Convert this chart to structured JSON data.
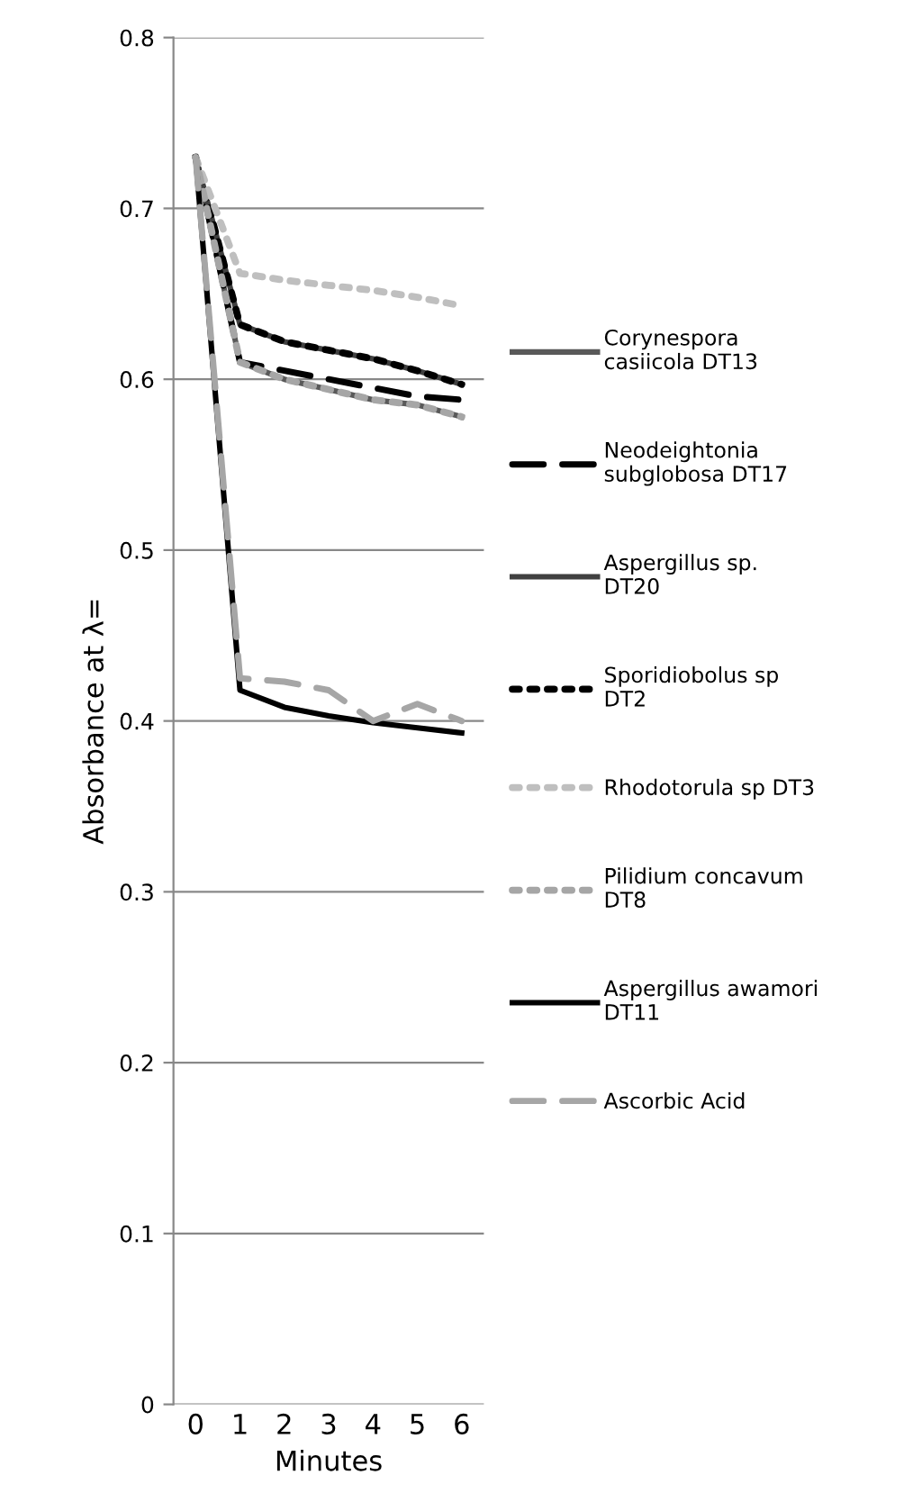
{
  "chart_data": {
    "type": "line",
    "xlabel": "Minutes",
    "ylabel": "Absorbance at λ=",
    "x": [
      0,
      1,
      2,
      3,
      4,
      5,
      6
    ],
    "xlim": [
      -0.5,
      6.5
    ],
    "xticks": [
      0,
      1,
      2,
      3,
      4,
      5,
      6
    ],
    "ylim": [
      0,
      0.8
    ],
    "yticks": [
      0,
      0.1,
      0.2,
      0.3,
      0.4,
      0.5,
      0.6,
      0.7,
      0.8
    ],
    "grid": "y",
    "legend": "right",
    "series": [
      {
        "name": "Corynespora casiicola DT13",
        "color": "#595959",
        "line_style": "solid",
        "values": [
          0.73,
          0.61,
          0.6,
          0.594,
          0.588,
          0.585,
          0.578
        ]
      },
      {
        "name": "Neodeightonia subglobosa DT17",
        "color": "#000000",
        "line_style": "dashed",
        "values": [
          0.73,
          0.61,
          0.605,
          0.6,
          0.595,
          0.59,
          0.588
        ]
      },
      {
        "name": "Aspergillus sp. DT20",
        "color": "#404040",
        "line_style": "solid",
        "values": [
          0.73,
          0.632,
          0.622,
          0.617,
          0.612,
          0.605,
          0.597
        ]
      },
      {
        "name": "Sporidiobolus sp DT2",
        "color": "#000000",
        "line_style": "dotted",
        "values": [
          0.73,
          0.632,
          0.622,
          0.617,
          0.612,
          0.605,
          0.597
        ]
      },
      {
        "name": "Rhodotorula sp DT3",
        "color": "#bfbfbf",
        "line_style": "dotted",
        "values": [
          0.73,
          0.662,
          0.658,
          0.655,
          0.652,
          0.648,
          0.643
        ]
      },
      {
        "name": "Pilidium concavum DT8",
        "color": "#a6a6a6",
        "line_style": "dotted",
        "values": [
          0.73,
          0.61,
          0.6,
          0.594,
          0.588,
          0.585,
          0.578
        ]
      },
      {
        "name": "Aspergillus awamori DT11",
        "color": "#000000",
        "line_style": "solid",
        "values": [
          0.73,
          0.418,
          0.408,
          0.403,
          0.399,
          0.396,
          0.393
        ]
      },
      {
        "name": "Ascorbic Acid",
        "color": "#a6a6a6",
        "line_style": "dashed",
        "values": [
          0.73,
          0.425,
          0.423,
          0.418,
          0.4,
          0.41,
          0.4
        ]
      }
    ]
  }
}
